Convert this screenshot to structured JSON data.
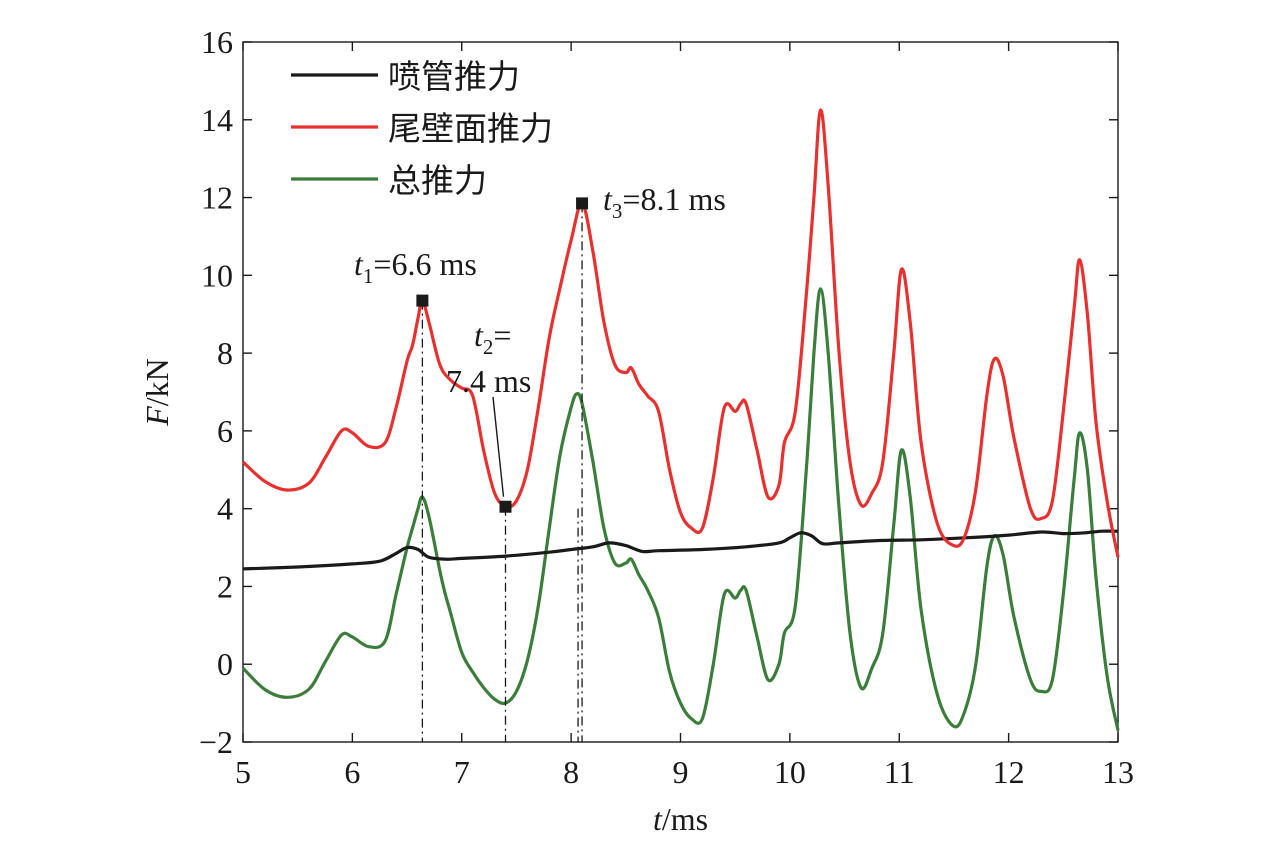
{
  "chart_data": {
    "type": "line",
    "xlabel": "t/ms",
    "ylabel": "F/kN",
    "xlim": [
      5,
      13
    ],
    "ylim": [
      -2,
      16
    ],
    "xticks": [
      5,
      6,
      7,
      8,
      9,
      10,
      11,
      12,
      13
    ],
    "yticks": [
      -2,
      0,
      2,
      4,
      6,
      8,
      10,
      12,
      14,
      16
    ],
    "xtick_labels": [
      "5",
      "6",
      "7",
      "8",
      "9",
      "10",
      "11",
      "12",
      "13"
    ],
    "ytick_labels": [
      "−2",
      "0",
      "2",
      "4",
      "6",
      "8",
      "10",
      "12",
      "14",
      "16"
    ],
    "grid": false,
    "legend_position": "top-left",
    "series": [
      {
        "name": "喷管推力",
        "color": "#1a1a1a",
        "points": [
          [
            5.0,
            2.45
          ],
          [
            5.5,
            2.5
          ],
          [
            6.0,
            2.58
          ],
          [
            6.25,
            2.65
          ],
          [
            6.4,
            2.85
          ],
          [
            6.5,
            3.0
          ],
          [
            6.6,
            2.95
          ],
          [
            6.7,
            2.75
          ],
          [
            6.85,
            2.7
          ],
          [
            7.0,
            2.72
          ],
          [
            7.4,
            2.78
          ],
          [
            7.8,
            2.88
          ],
          [
            8.0,
            2.95
          ],
          [
            8.2,
            3.02
          ],
          [
            8.35,
            3.12
          ],
          [
            8.5,
            3.05
          ],
          [
            8.65,
            2.9
          ],
          [
            8.8,
            2.92
          ],
          [
            9.2,
            2.95
          ],
          [
            9.6,
            3.02
          ],
          [
            9.9,
            3.12
          ],
          [
            10.0,
            3.25
          ],
          [
            10.1,
            3.38
          ],
          [
            10.2,
            3.3
          ],
          [
            10.3,
            3.1
          ],
          [
            10.45,
            3.12
          ],
          [
            10.8,
            3.18
          ],
          [
            11.2,
            3.2
          ],
          [
            11.6,
            3.25
          ],
          [
            12.0,
            3.32
          ],
          [
            12.3,
            3.4
          ],
          [
            12.5,
            3.36
          ],
          [
            12.7,
            3.38
          ],
          [
            12.85,
            3.42
          ],
          [
            13.0,
            3.42
          ]
        ]
      },
      {
        "name": "尾壁面推力",
        "color": "#e8312f",
        "points": [
          [
            5.0,
            5.2
          ],
          [
            5.2,
            4.7
          ],
          [
            5.4,
            4.48
          ],
          [
            5.6,
            4.65
          ],
          [
            5.75,
            5.3
          ],
          [
            5.9,
            6.0
          ],
          [
            6.0,
            5.95
          ],
          [
            6.15,
            5.6
          ],
          [
            6.3,
            5.7
          ],
          [
            6.4,
            6.6
          ],
          [
            6.5,
            7.8
          ],
          [
            6.55,
            8.2
          ],
          [
            6.6,
            8.9
          ],
          [
            6.64,
            9.35
          ],
          [
            6.7,
            8.8
          ],
          [
            6.8,
            7.7
          ],
          [
            6.9,
            7.3
          ],
          [
            7.0,
            7.1
          ],
          [
            7.1,
            6.9
          ],
          [
            7.2,
            5.5
          ],
          [
            7.3,
            4.4
          ],
          [
            7.4,
            4.05
          ],
          [
            7.5,
            4.2
          ],
          [
            7.6,
            5.0
          ],
          [
            7.7,
            6.6
          ],
          [
            7.8,
            8.4
          ],
          [
            7.9,
            9.7
          ],
          [
            8.0,
            10.9
          ],
          [
            8.1,
            11.85
          ],
          [
            8.2,
            10.6
          ],
          [
            8.3,
            8.8
          ],
          [
            8.4,
            7.7
          ],
          [
            8.5,
            7.5
          ],
          [
            8.55,
            7.62
          ],
          [
            8.62,
            7.2
          ],
          [
            8.7,
            6.9
          ],
          [
            8.8,
            6.5
          ],
          [
            8.9,
            5.0
          ],
          [
            9.0,
            3.9
          ],
          [
            9.1,
            3.5
          ],
          [
            9.2,
            3.5
          ],
          [
            9.3,
            4.8
          ],
          [
            9.4,
            6.6
          ],
          [
            9.5,
            6.5
          ],
          [
            9.55,
            6.7
          ],
          [
            9.6,
            6.7
          ],
          [
            9.7,
            5.5
          ],
          [
            9.8,
            4.3
          ],
          [
            9.9,
            4.6
          ],
          [
            9.95,
            5.7
          ],
          [
            10.05,
            6.5
          ],
          [
            10.15,
            9.5
          ],
          [
            10.22,
            12.0
          ],
          [
            10.28,
            14.25
          ],
          [
            10.35,
            12.3
          ],
          [
            10.45,
            8.0
          ],
          [
            10.55,
            5.2
          ],
          [
            10.65,
            4.1
          ],
          [
            10.75,
            4.4
          ],
          [
            10.85,
            5.2
          ],
          [
            10.95,
            8.0
          ],
          [
            11.02,
            10.15
          ],
          [
            11.1,
            8.8
          ],
          [
            11.2,
            5.7
          ],
          [
            11.35,
            3.6
          ],
          [
            11.5,
            3.05
          ],
          [
            11.6,
            3.3
          ],
          [
            11.7,
            4.5
          ],
          [
            11.8,
            6.9
          ],
          [
            11.87,
            7.85
          ],
          [
            11.95,
            7.4
          ],
          [
            12.05,
            5.8
          ],
          [
            12.2,
            4.0
          ],
          [
            12.3,
            3.75
          ],
          [
            12.4,
            4.2
          ],
          [
            12.5,
            6.5
          ],
          [
            12.6,
            9.2
          ],
          [
            12.65,
            10.4
          ],
          [
            12.72,
            9.0
          ],
          [
            12.8,
            6.2
          ],
          [
            12.9,
            4.2
          ],
          [
            13.0,
            2.75
          ]
        ]
      },
      {
        "name": "总推力",
        "color": "#3b7d3a",
        "points": [
          [
            5.0,
            -0.1
          ],
          [
            5.2,
            -0.65
          ],
          [
            5.4,
            -0.85
          ],
          [
            5.6,
            -0.65
          ],
          [
            5.75,
            0.05
          ],
          [
            5.9,
            0.75
          ],
          [
            6.0,
            0.7
          ],
          [
            6.15,
            0.45
          ],
          [
            6.3,
            0.6
          ],
          [
            6.4,
            1.8
          ],
          [
            6.5,
            3.0
          ],
          [
            6.55,
            3.5
          ],
          [
            6.6,
            4.0
          ],
          [
            6.64,
            4.3
          ],
          [
            6.7,
            3.8
          ],
          [
            6.8,
            2.4
          ],
          [
            6.85,
            1.8
          ],
          [
            6.9,
            1.3
          ],
          [
            7.0,
            0.3
          ],
          [
            7.1,
            -0.2
          ],
          [
            7.2,
            -0.6
          ],
          [
            7.3,
            -0.9
          ],
          [
            7.4,
            -1.0
          ],
          [
            7.5,
            -0.7
          ],
          [
            7.6,
            0.1
          ],
          [
            7.7,
            1.5
          ],
          [
            7.8,
            3.5
          ],
          [
            7.9,
            5.4
          ],
          [
            8.0,
            6.6
          ],
          [
            8.05,
            6.95
          ],
          [
            8.1,
            6.7
          ],
          [
            8.2,
            5.2
          ],
          [
            8.3,
            3.5
          ],
          [
            8.4,
            2.6
          ],
          [
            8.5,
            2.6
          ],
          [
            8.55,
            2.7
          ],
          [
            8.62,
            2.3
          ],
          [
            8.7,
            1.9
          ],
          [
            8.8,
            1.2
          ],
          [
            8.9,
            -0.2
          ],
          [
            9.0,
            -1.0
          ],
          [
            9.1,
            -1.4
          ],
          [
            9.2,
            -1.4
          ],
          [
            9.3,
            0.0
          ],
          [
            9.4,
            1.8
          ],
          [
            9.5,
            1.7
          ],
          [
            9.55,
            1.9
          ],
          [
            9.6,
            1.9
          ],
          [
            9.7,
            0.7
          ],
          [
            9.8,
            -0.4
          ],
          [
            9.9,
            0.0
          ],
          [
            9.95,
            0.8
          ],
          [
            10.05,
            1.5
          ],
          [
            10.15,
            5.0
          ],
          [
            10.22,
            8.0
          ],
          [
            10.28,
            9.65
          ],
          [
            10.35,
            8.0
          ],
          [
            10.45,
            4.0
          ],
          [
            10.55,
            0.8
          ],
          [
            10.65,
            -0.6
          ],
          [
            10.75,
            -0.1
          ],
          [
            10.85,
            0.8
          ],
          [
            10.95,
            3.6
          ],
          [
            11.02,
            5.5
          ],
          [
            11.1,
            4.3
          ],
          [
            11.2,
            1.4
          ],
          [
            11.35,
            -0.8
          ],
          [
            11.5,
            -1.6
          ],
          [
            11.6,
            -1.2
          ],
          [
            11.7,
            0.0
          ],
          [
            11.8,
            2.5
          ],
          [
            11.87,
            3.3
          ],
          [
            11.95,
            2.8
          ],
          [
            12.05,
            1.2
          ],
          [
            12.2,
            -0.4
          ],
          [
            12.3,
            -0.7
          ],
          [
            12.4,
            -0.4
          ],
          [
            12.5,
            1.8
          ],
          [
            12.6,
            4.8
          ],
          [
            12.65,
            5.95
          ],
          [
            12.72,
            5.0
          ],
          [
            12.8,
            2.2
          ],
          [
            12.9,
            -0.3
          ],
          [
            13.0,
            -1.7
          ]
        ]
      }
    ],
    "markers": [
      {
        "t": 6.64,
        "F": 9.35
      },
      {
        "t": 7.4,
        "F": 4.05
      },
      {
        "t": 8.1,
        "F": 11.85
      }
    ],
    "annotations": [
      {
        "var": "t",
        "sub": "1",
        "text": "=6.6 ms"
      },
      {
        "var": "t",
        "sub": "2",
        "text": "="
      },
      {
        "var": "",
        "sub": "",
        "text": "7.4 ms"
      },
      {
        "var": "t",
        "sub": "3",
        "text": "=8.1 ms"
      }
    ]
  }
}
